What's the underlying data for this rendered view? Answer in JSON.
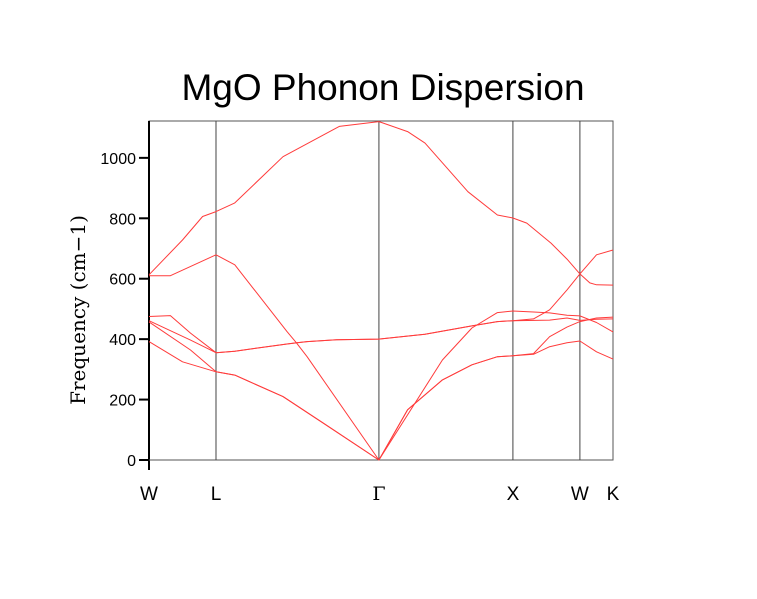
{
  "chart_data": {
    "type": "line",
    "title": "MgO Phonon Dispersion",
    "xlabel": "",
    "ylabel": "Frequency (cm−1)",
    "ylim": [
      0,
      1122
    ],
    "xlim": [
      0,
      3.463
    ],
    "grid": false,
    "line_color": "#ff3b3b",
    "y_ticks": [
      {
        "value": 0,
        "label": "0"
      },
      {
        "value": 200,
        "label": "200"
      },
      {
        "value": 400,
        "label": "400"
      },
      {
        "value": 600,
        "label": "600"
      },
      {
        "value": 800,
        "label": "800"
      },
      {
        "value": 1000,
        "label": "1000"
      }
    ],
    "x_ticks": [
      {
        "value": 0,
        "label": "W"
      },
      {
        "value": 0.5,
        "label": "L"
      },
      {
        "value": 1.716,
        "label": "Γ"
      },
      {
        "value": 2.716,
        "label": "X"
      },
      {
        "value": 3.216,
        "label": "W"
      },
      {
        "value": 3.463,
        "label": "K"
      }
    ],
    "series": [
      {
        "x": [
          0,
          0.25,
          0.5,
          0.64,
          1.0,
          1.3,
          1.716,
          1.93,
          2.19,
          2.41,
          2.6,
          2.716,
          2.87,
          2.99,
          3.12,
          3.216,
          3.34,
          3.463
        ],
        "y": [
          392,
          325,
          292,
          281,
          210,
          122,
          0,
          166,
          265,
          315,
          342,
          345,
          350,
          375,
          388,
          394,
          358,
          334
        ]
      },
      {
        "x": [
          0,
          0.31,
          0.5,
          0.64,
          1.0,
          1.3,
          1.716,
          1.93,
          2.19,
          2.41,
          2.6,
          2.716,
          2.87,
          2.99,
          3.12,
          3.216,
          3.34,
          3.463
        ],
        "y": [
          457,
          364,
          292,
          281,
          210,
          122,
          0,
          166,
          265,
          315,
          342,
          345,
          352,
          408,
          440,
          458,
          470,
          473
        ]
      },
      {
        "x": [
          0,
          0.31,
          0.5,
          0.64,
          1.03,
          1.1,
          1.18,
          1.716,
          2.19,
          2.41,
          2.6,
          2.716,
          2.87,
          2.99,
          3.12,
          3.216,
          3.34,
          3.463
        ],
        "y": [
          461,
          397,
          355,
          360,
          384,
          388,
          342,
          0,
          331,
          437,
          488,
          493,
          490,
          487,
          479,
          477,
          455,
          424
        ]
      },
      {
        "x": [
          0,
          0.16,
          0.31,
          0.5,
          0.64,
          1.03,
          1.18,
          1.4,
          1.716,
          2.06,
          2.41,
          2.6,
          2.716,
          2.99,
          3.12,
          3.216,
          3.34,
          3.463
        ],
        "y": [
          475,
          478,
          420,
          355,
          360,
          384,
          392,
          398,
          400,
          416,
          444,
          458,
          461,
          463,
          470,
          462,
          466,
          467
        ]
      },
      {
        "x": [
          0,
          0.16,
          0.5,
          0.64,
          1.03,
          1.1,
          1.18,
          1.4,
          1.716,
          2.06,
          2.41,
          2.6,
          2.716,
          2.87,
          2.99,
          3.12,
          3.216,
          3.34,
          3.463
        ],
        "y": [
          610,
          610,
          679,
          646,
          425,
          388,
          392,
          398,
          400,
          416,
          444,
          458,
          461,
          467,
          497,
          563,
          616,
          679,
          695
        ]
      },
      {
        "x": [
          0,
          0.25,
          0.4,
          0.5,
          0.64,
          1.0,
          1.42,
          1.716,
          1.93,
          2.06,
          2.38,
          2.6,
          2.716,
          2.82,
          3.0,
          3.12,
          3.216,
          3.29,
          3.34,
          3.463
        ],
        "y": [
          613,
          728,
          806,
          822,
          851,
          1004,
          1104,
          1120,
          1087,
          1049,
          888,
          811,
          801,
          784,
          718,
          665,
          616,
          586,
          580,
          579
        ]
      }
    ]
  }
}
